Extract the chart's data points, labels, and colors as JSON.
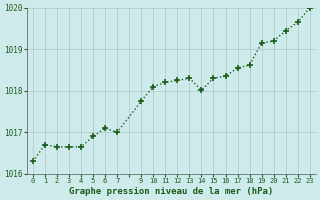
{
  "x": [
    0,
    1,
    2,
    3,
    4,
    5,
    6,
    7,
    9,
    10,
    11,
    12,
    13,
    14,
    15,
    16,
    17,
    18,
    19,
    20,
    21,
    22,
    23
  ],
  "y": [
    1016.3,
    1016.7,
    1016.65,
    1016.65,
    1016.65,
    1016.9,
    1017.1,
    1017.0,
    1017.75,
    1018.1,
    1018.2,
    1018.25,
    1018.3,
    1018.02,
    1018.3,
    1018.35,
    1018.55,
    1018.62,
    1019.15,
    1019.2,
    1019.45,
    1019.65,
    1020.0
  ],
  "xlim": [
    -0.5,
    23.5
  ],
  "ylim": [
    1016,
    1020
  ],
  "yticks": [
    1016,
    1017,
    1018,
    1019,
    1020
  ],
  "xtick_labels": [
    "0",
    "1",
    "2",
    "3",
    "4",
    "5",
    "6",
    "7",
    "",
    "9",
    "10",
    "11",
    "12",
    "13",
    "14",
    "15",
    "16",
    "17",
    "18",
    "19",
    "20",
    "21",
    "22",
    "23"
  ],
  "xtick_positions": [
    0,
    1,
    2,
    3,
    4,
    5,
    6,
    7,
    8,
    9,
    10,
    11,
    12,
    13,
    14,
    15,
    16,
    17,
    18,
    19,
    20,
    21,
    22,
    23
  ],
  "xlabel": "Graphe pression niveau de la mer (hPa)",
  "line_color": "#1a5c1a",
  "marker": "P",
  "marker_size": 3,
  "bg_color": "#ceeaea",
  "grid_color": "#a8c8c8",
  "tick_label_color": "#1a5c1a",
  "xlabel_color": "#1a5c1a",
  "linewidth": 1.0,
  "line_dotted": true
}
